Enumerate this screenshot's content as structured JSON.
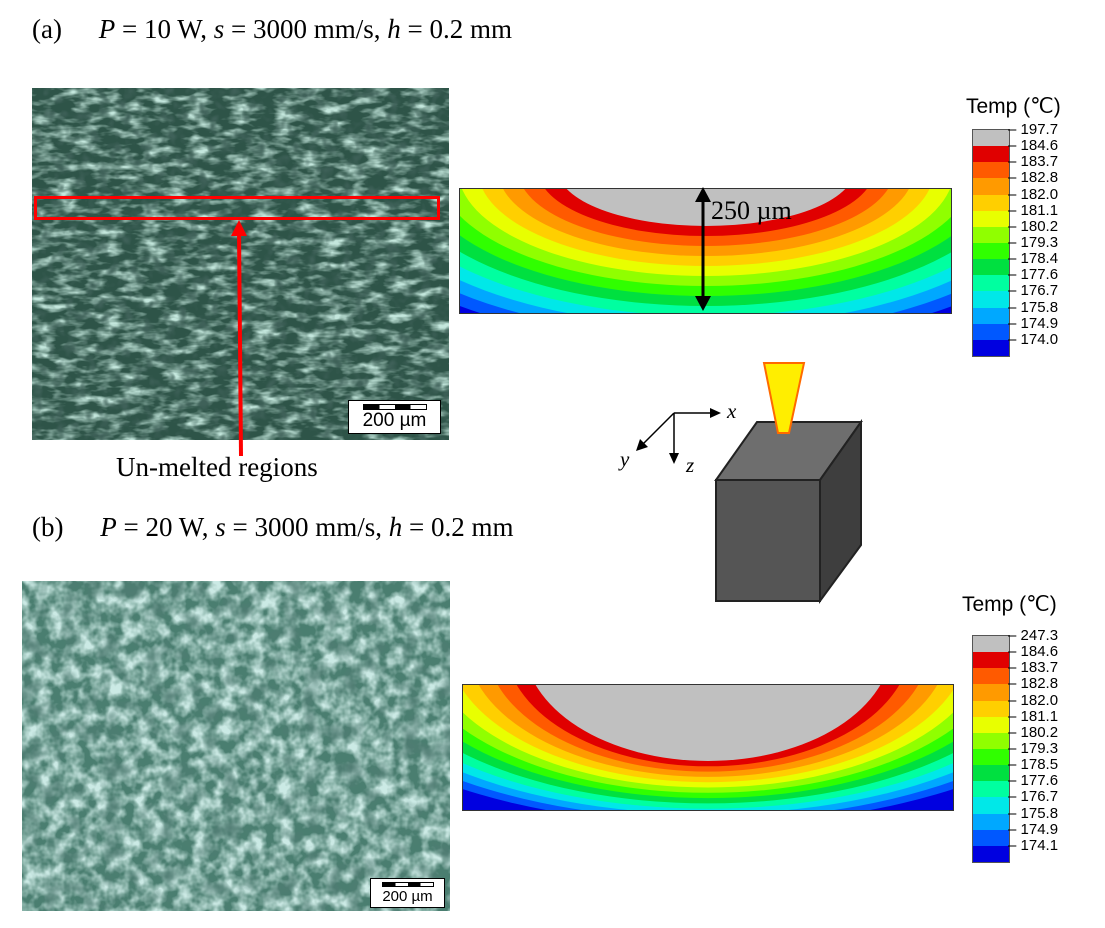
{
  "panel_a": {
    "label": "(a)",
    "params": {
      "P": "P",
      "P_val": " = 10 W, ",
      "s": "s",
      "s_val": " = 3000 mm/s, ",
      "h": "h",
      "h_val": " = 0.2 mm"
    },
    "scale_bar": "200 µm",
    "highlight_label": "Un-melted regions",
    "depth_annotation": "250 µm",
    "legend": {
      "title": "Temp (℃)",
      "values": [
        "197.7",
        "184.6",
        "183.7",
        "182.8",
        "182.0",
        "181.1",
        "180.2",
        "179.3",
        "178.4",
        "177.6",
        "176.7",
        "175.8",
        "174.9",
        "174.0"
      ]
    }
  },
  "panel_b": {
    "label": "(b)",
    "params": {
      "P": "P",
      "P_val": " = 20 W, ",
      "s": "s",
      "s_val": " = 3000 mm/s, ",
      "h": "h",
      "h_val": " = 0.2 mm"
    },
    "scale_bar": "200 µm",
    "legend": {
      "title": "Temp (℃)",
      "values": [
        "247.3",
        "184.6",
        "183.7",
        "182.8",
        "182.0",
        "181.1",
        "180.2",
        "179.3",
        "178.5",
        "177.6",
        "176.7",
        "175.8",
        "174.9",
        "174.1"
      ]
    }
  },
  "axes": {
    "x": "x",
    "y": "y",
    "z": "z"
  },
  "colors": {
    "contour": [
      "#c0c0c0",
      "#e00000",
      "#ff5a00",
      "#ff9a00",
      "#ffcf00",
      "#e8ff00",
      "#90ff00",
      "#30ff00",
      "#00e040",
      "#00ffa0",
      "#00e8e8",
      "#00a8ff",
      "#0058ff",
      "#0000e0"
    ],
    "red_annotation": "#ff0000",
    "laser": "#ffee00",
    "block_front": "#555555",
    "block_top": "#6e6e6e",
    "block_side": "#3e3e3e"
  }
}
